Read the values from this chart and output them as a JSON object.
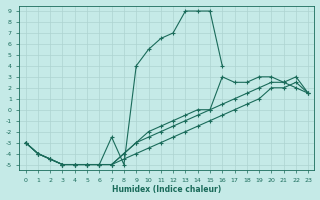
{
  "title": "",
  "xlabel": "Humidex (Indice chaleur)",
  "ylabel": "",
  "background_color": "#c5eae7",
  "grid_color": "#aed4d1",
  "line_color": "#1a6b5a",
  "xlim": [
    -0.5,
    23.5
  ],
  "ylim": [
    -5.5,
    9.5
  ],
  "xticks": [
    0,
    1,
    2,
    3,
    4,
    5,
    6,
    7,
    8,
    9,
    10,
    11,
    12,
    13,
    14,
    15,
    16,
    17,
    18,
    19,
    20,
    21,
    22,
    23
  ],
  "yticks": [
    -5,
    -4,
    -3,
    -2,
    -1,
    0,
    1,
    2,
    3,
    4,
    5,
    6,
    7,
    8,
    9
  ],
  "lines": [
    {
      "x": [
        0,
        1,
        2,
        3,
        4,
        5,
        6,
        7,
        8,
        9,
        10,
        11,
        12,
        13,
        14,
        15,
        16
      ],
      "y": [
        -3,
        -4,
        -4.5,
        -5,
        -5,
        -5,
        -5,
        -2.5,
        -5,
        4,
        5.5,
        6.5,
        7,
        9,
        9,
        9,
        4
      ]
    },
    {
      "x": [
        0,
        1,
        2,
        3,
        4,
        5,
        6,
        7,
        8,
        9,
        10,
        11,
        12,
        13,
        14,
        15,
        16,
        17,
        18,
        19,
        20,
        21,
        22,
        23
      ],
      "y": [
        -3,
        -4,
        -4.5,
        -5,
        -5,
        -5,
        -5,
        -5,
        -4.5,
        -4,
        -3.5,
        -3,
        -2.5,
        -2,
        -1.5,
        -1,
        -0.5,
        0,
        0.5,
        1,
        2,
        2,
        2.5,
        1.5
      ]
    },
    {
      "x": [
        0,
        1,
        2,
        3,
        4,
        5,
        6,
        7,
        8,
        9,
        10,
        11,
        12,
        13,
        14,
        15,
        16,
        17,
        18,
        19,
        20,
        21,
        22,
        23
      ],
      "y": [
        -3,
        -4,
        -4.5,
        -5,
        -5,
        -5,
        -5,
        -5,
        -4,
        -3,
        -2.5,
        -2,
        -1.5,
        -1,
        -0.5,
        0,
        0.5,
        1,
        1.5,
        2,
        2.5,
        2.5,
        3,
        1.5
      ]
    },
    {
      "x": [
        0,
        1,
        2,
        3,
        4,
        5,
        6,
        7,
        8,
        9,
        10,
        11,
        12,
        13,
        14,
        15,
        16,
        17,
        18,
        19,
        20,
        21,
        22,
        23
      ],
      "y": [
        -3,
        -4,
        -4.5,
        -5,
        -5,
        -5,
        -5,
        -5,
        -4,
        -3,
        -2,
        -1.5,
        -1,
        -0.5,
        0,
        0,
        3,
        2.5,
        2.5,
        3,
        3,
        2.5,
        2,
        1.5
      ]
    }
  ]
}
